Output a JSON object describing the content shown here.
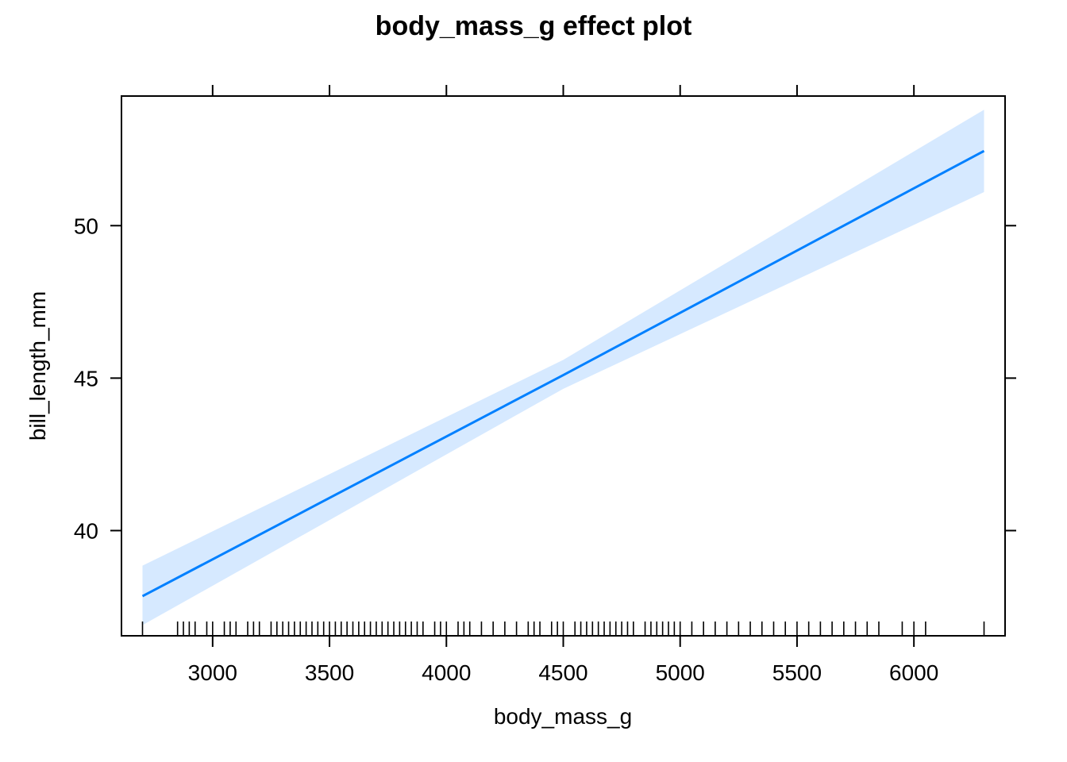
{
  "chart_data": {
    "type": "line",
    "title": "body_mass_g effect plot",
    "xlabel": "body_mass_g",
    "ylabel": "bill_length_mm",
    "xlim": [
      2610,
      6390
    ],
    "ylim": [
      36.55,
      54.25
    ],
    "x_ticks": [
      3000,
      3500,
      4000,
      4500,
      5000,
      5500,
      6000
    ],
    "y_ticks": [
      40,
      45,
      50
    ],
    "grid": false,
    "legend": "none",
    "colors": {
      "line": "#0080ff",
      "band": "#d6e9ff",
      "axis": "#000000"
    },
    "series": [
      {
        "x": [
          2700,
          4500,
          6300
        ],
        "y": [
          37.85,
          45.1,
          52.45
        ],
        "lower": [
          36.9,
          44.65,
          51.1
        ],
        "upper": [
          38.85,
          45.6,
          53.8
        ]
      }
    ],
    "rug_x": [
      2700,
      2850,
      2875,
      2900,
      2925,
      2975,
      3000,
      3050,
      3075,
      3100,
      3150,
      3175,
      3200,
      3250,
      3275,
      3300,
      3325,
      3350,
      3375,
      3400,
      3425,
      3450,
      3475,
      3500,
      3525,
      3550,
      3575,
      3600,
      3625,
      3650,
      3675,
      3700,
      3725,
      3750,
      3775,
      3800,
      3825,
      3850,
      3875,
      3900,
      3950,
      3975,
      4000,
      4050,
      4075,
      4100,
      4150,
      4200,
      4250,
      4300,
      4350,
      4375,
      4400,
      4450,
      4475,
      4500,
      4550,
      4575,
      4600,
      4625,
      4650,
      4675,
      4700,
      4725,
      4750,
      4775,
      4800,
      4850,
      4875,
      4900,
      4925,
      4950,
      4975,
      5000,
      5050,
      5100,
      5150,
      5200,
      5250,
      5300,
      5350,
      5400,
      5450,
      5500,
      5550,
      5600,
      5650,
      5700,
      5750,
      5800,
      5850,
      5950,
      6000,
      6050,
      6300
    ]
  }
}
